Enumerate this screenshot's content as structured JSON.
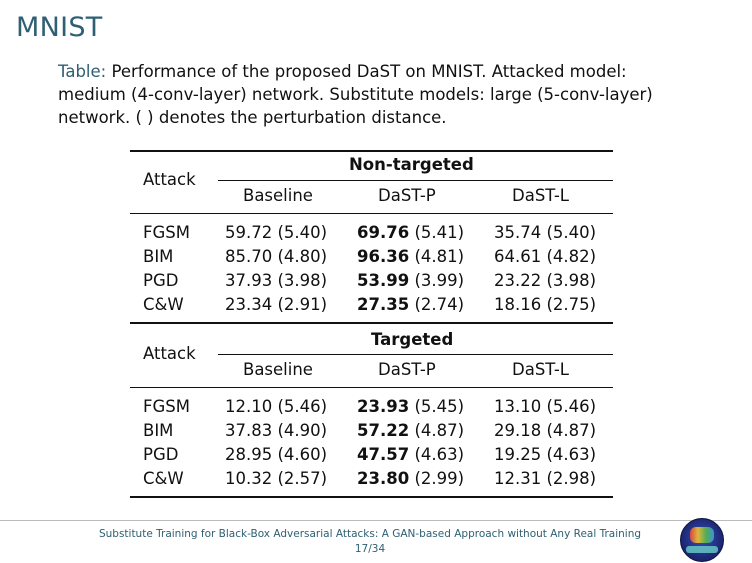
{
  "frame_title": "MNIST",
  "caption": {
    "label": "Table:",
    "text": "Performance of the proposed DaST on MNIST. Attacked model: medium (4-conv-layer) network. Substitute models: large (5-conv-layer) network. ( ) denotes the perturbation distance."
  },
  "table": {
    "attack_header": "Attack",
    "columns": [
      "Baseline",
      "DaST-P",
      "DaST-L"
    ],
    "sections": [
      {
        "group": "Non-targeted",
        "rows": [
          {
            "attack": "FGSM",
            "baseline": "59.72 (5.40)",
            "dastp_bold": "69.76",
            "dastp_dist": "(5.41)",
            "dastl": "35.74 (5.40)"
          },
          {
            "attack": "BIM",
            "baseline": "85.70 (4.80)",
            "dastp_bold": "96.36",
            "dastp_dist": "(4.81)",
            "dastl": "64.61 (4.82)"
          },
          {
            "attack": "PGD",
            "baseline": "37.93 (3.98)",
            "dastp_bold": "53.99",
            "dastp_dist": "(3.99)",
            "dastl": "23.22 (3.98)"
          },
          {
            "attack": "C&W",
            "baseline": "23.34 (2.91)",
            "dastp_bold": "27.35",
            "dastp_dist": "(2.74)",
            "dastl": "18.16 (2.75)"
          }
        ]
      },
      {
        "group": "Targeted",
        "rows": [
          {
            "attack": "FGSM",
            "baseline": "12.10 (5.46)",
            "dastp_bold": "23.93",
            "dastp_dist": "(5.45)",
            "dastl": "13.10 (5.46)"
          },
          {
            "attack": "BIM",
            "baseline": "37.83 (4.90)",
            "dastp_bold": "57.22",
            "dastp_dist": "(4.87)",
            "dastl": "29.18 (4.87)"
          },
          {
            "attack": "PGD",
            "baseline": "28.95 (4.60)",
            "dastp_bold": "47.57",
            "dastp_dist": "(4.63)",
            "dastl": "19.25 (4.63)"
          },
          {
            "attack": "C&W",
            "baseline": "10.32 (2.57)",
            "dastp_bold": "23.80",
            "dastp_dist": "(2.99)",
            "dastl": "12.31 (2.98)"
          }
        ]
      }
    ]
  },
  "footer": {
    "title": "Substitute Training for Black-Box Adversarial Attacks: A GAN-based Approach without Any Real Training",
    "page": "17/34"
  }
}
